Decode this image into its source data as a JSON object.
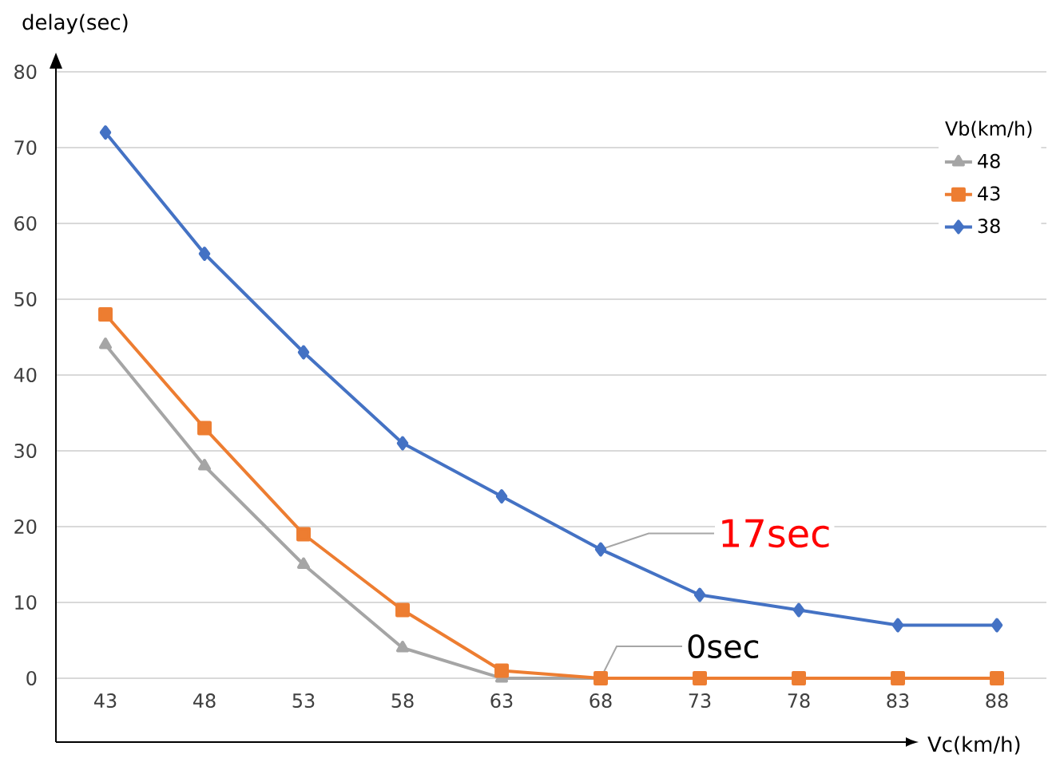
{
  "chart_data": {
    "type": "line",
    "xlabel": "Vc(km/h)",
    "ylabel": "delay(sec)",
    "legend_title": "Vb(km/h)",
    "categories": [
      "43",
      "48",
      "53",
      "58",
      "63",
      "68",
      "73",
      "78",
      "83",
      "88"
    ],
    "series": [
      {
        "name": "48",
        "color": "#a5a5a5",
        "marker": "triangle",
        "values": [
          44,
          28,
          15,
          4,
          0,
          0,
          null,
          null,
          null,
          null
        ]
      },
      {
        "name": "43",
        "color": "#ed7d31",
        "marker": "square",
        "values": [
          48,
          33,
          19,
          9,
          1,
          0,
          0,
          0,
          0,
          0
        ]
      },
      {
        "name": "38",
        "color": "#4472c4",
        "marker": "diamond",
        "values": [
          72,
          56,
          43,
          31,
          24,
          17,
          11,
          9,
          7,
          7
        ]
      }
    ],
    "ylim": [
      0,
      80
    ],
    "yticks": [
      0,
      10,
      20,
      30,
      40,
      50,
      60,
      70,
      80
    ],
    "grid": "y",
    "legend": "top right",
    "annotations": [
      {
        "text": "17sec",
        "x": "68",
        "y": 17
      },
      {
        "text": "0sec",
        "x": "68",
        "y": 0
      }
    ]
  }
}
